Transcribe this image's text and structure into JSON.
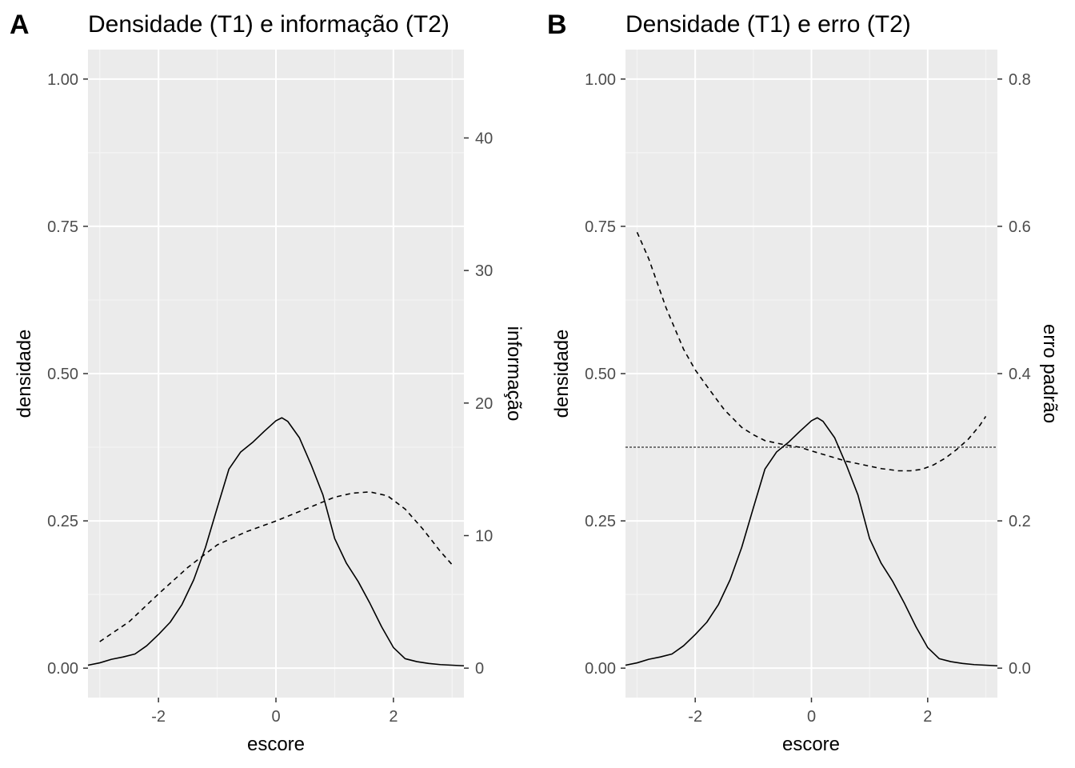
{
  "chart_data": [
    {
      "type": "line",
      "tag": "A",
      "title": "Densidade (T1) e informação (T2)",
      "xlabel": "escore",
      "ylabel": "densidade",
      "y2label": "informação",
      "xlim": [
        -3.2,
        3.2
      ],
      "ylim": [
        -0.05,
        1.05
      ],
      "x_ticks": [
        -2,
        0,
        2
      ],
      "y_ticks": [
        0.0,
        0.25,
        0.5,
        0.75,
        1.0
      ],
      "y_tick_labels": [
        "0.00",
        "0.25",
        "0.50",
        "0.75",
        "1.00"
      ],
      "y2_ticks": [
        0,
        10,
        20,
        30,
        40
      ],
      "y2_tick_labels": [
        "0",
        "10",
        "20",
        "30",
        "40"
      ],
      "y2_scale": 0.0225,
      "grid": true,
      "series": [
        {
          "name": "densidade (T1)",
          "axis": "left",
          "line_style": "solid",
          "x": [
            -3.2,
            -3.0,
            -2.8,
            -2.6,
            -2.4,
            -2.2,
            -2.0,
            -1.8,
            -1.6,
            -1.4,
            -1.2,
            -1.0,
            -0.8,
            -0.6,
            -0.4,
            -0.2,
            0.0,
            0.1,
            0.2,
            0.4,
            0.6,
            0.8,
            1.0,
            1.2,
            1.4,
            1.6,
            1.8,
            2.0,
            2.2,
            2.4,
            2.6,
            2.8,
            3.0,
            3.2
          ],
          "values": [
            0.005,
            0.009,
            0.015,
            0.019,
            0.024,
            0.038,
            0.057,
            0.078,
            0.108,
            0.15,
            0.205,
            0.272,
            0.338,
            0.367,
            0.383,
            0.402,
            0.42,
            0.425,
            0.419,
            0.391,
            0.345,
            0.294,
            0.22,
            0.178,
            0.147,
            0.11,
            0.07,
            0.035,
            0.016,
            0.011,
            0.008,
            0.006,
            0.005,
            0.004
          ]
        },
        {
          "name": "informação (T2)",
          "axis": "right",
          "line_style": "dashed",
          "x": [
            -3.0,
            -2.5,
            -2.0,
            -1.5,
            -1.0,
            -0.5,
            0.0,
            0.5,
            1.0,
            1.3,
            1.6,
            1.9,
            2.2,
            2.5,
            2.8,
            3.0
          ],
          "values": [
            2.0,
            3.5,
            5.6,
            7.6,
            9.3,
            10.3,
            11.1,
            12.0,
            12.9,
            13.2,
            13.3,
            13.0,
            12.0,
            10.5,
            8.8,
            7.8
          ]
        }
      ]
    },
    {
      "type": "line",
      "tag": "B",
      "title": "Densidade (T1) e erro (T2)",
      "xlabel": "escore",
      "ylabel": "densidade",
      "y2label": "erro padrão",
      "xlim": [
        -3.2,
        3.2
      ],
      "ylim": [
        -0.05,
        1.05
      ],
      "x_ticks": [
        -2,
        0,
        2
      ],
      "y_ticks": [
        0.0,
        0.25,
        0.5,
        0.75,
        1.0
      ],
      "y_tick_labels": [
        "0.00",
        "0.25",
        "0.50",
        "0.75",
        "1.00"
      ],
      "y2_ticks": [
        0.0,
        0.2,
        0.4,
        0.6,
        0.8
      ],
      "y2_tick_labels": [
        "0.0",
        "0.2",
        "0.4",
        "0.6",
        "0.8"
      ],
      "y2_scale": 1.25,
      "grid": true,
      "reference_line_y": 0.3,
      "series": [
        {
          "name": "densidade (T1)",
          "axis": "left",
          "line_style": "solid",
          "x": [
            -3.2,
            -3.0,
            -2.8,
            -2.6,
            -2.4,
            -2.2,
            -2.0,
            -1.8,
            -1.6,
            -1.4,
            -1.2,
            -1.0,
            -0.8,
            -0.6,
            -0.4,
            -0.2,
            0.0,
            0.1,
            0.2,
            0.4,
            0.6,
            0.8,
            1.0,
            1.2,
            1.4,
            1.6,
            1.8,
            2.0,
            2.2,
            2.4,
            2.6,
            2.8,
            3.0,
            3.2
          ],
          "values": [
            0.005,
            0.009,
            0.015,
            0.019,
            0.024,
            0.038,
            0.057,
            0.078,
            0.108,
            0.15,
            0.205,
            0.272,
            0.338,
            0.367,
            0.383,
            0.402,
            0.42,
            0.425,
            0.419,
            0.391,
            0.345,
            0.294,
            0.22,
            0.178,
            0.147,
            0.11,
            0.07,
            0.035,
            0.016,
            0.011,
            0.008,
            0.006,
            0.005,
            0.004
          ]
        },
        {
          "name": "erro padrão (T2)",
          "axis": "right",
          "line_style": "dashed",
          "x": [
            -3.0,
            -2.8,
            -2.5,
            -2.2,
            -2.0,
            -1.8,
            -1.5,
            -1.2,
            -1.0,
            -0.8,
            -0.5,
            -0.2,
            0.0,
            0.3,
            0.6,
            0.9,
            1.2,
            1.5,
            1.7,
            1.9,
            2.1,
            2.3,
            2.5,
            2.7,
            2.9,
            3.0
          ],
          "values": [
            0.592,
            0.556,
            0.489,
            0.433,
            0.405,
            0.383,
            0.351,
            0.327,
            0.317,
            0.309,
            0.304,
            0.3,
            0.295,
            0.288,
            0.281,
            0.276,
            0.271,
            0.268,
            0.268,
            0.27,
            0.276,
            0.285,
            0.297,
            0.311,
            0.33,
            0.342
          ]
        }
      ]
    }
  ]
}
